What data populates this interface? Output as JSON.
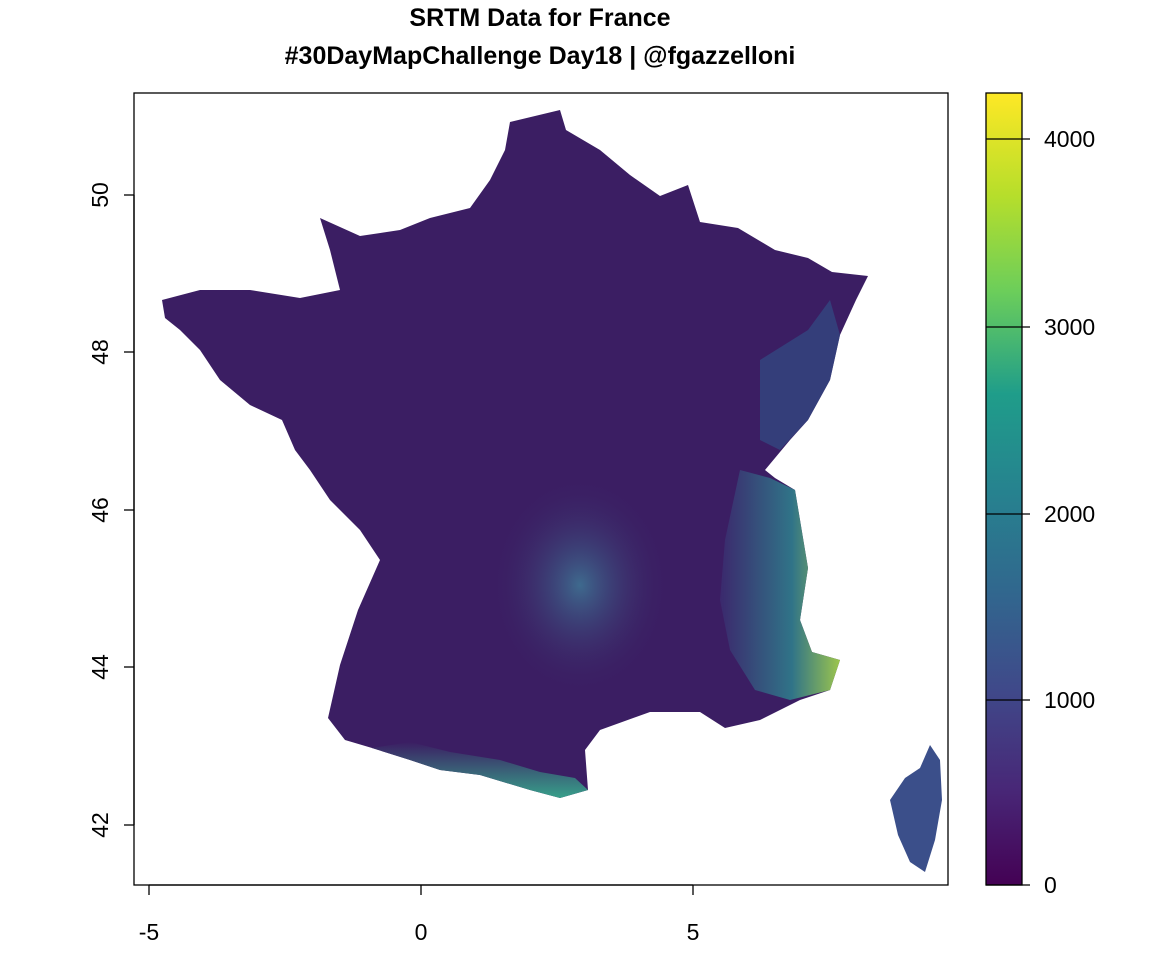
{
  "title": "SRTM Data for France",
  "subtitle": "#30DayMapChallenge Day18 | @fgazzelloni",
  "x_axis": {
    "ticks": [
      -5,
      0,
      5
    ],
    "labels": [
      "-5",
      "0",
      "5"
    ]
  },
  "y_axis": {
    "ticks": [
      42,
      44,
      46,
      48,
      50
    ],
    "labels": [
      "42",
      "44",
      "46",
      "48",
      "50"
    ]
  },
  "legend": {
    "ticks": [
      0,
      1000,
      2000,
      3000,
      4000
    ],
    "labels": [
      "0",
      "1000",
      "2000",
      "3000",
      "4000"
    ],
    "range": [
      0,
      4200
    ],
    "palette": [
      "#440154",
      "#482777",
      "#3f4a8a",
      "#31678e",
      "#26838f",
      "#1f9d8a",
      "#6cce5a",
      "#b6de2b",
      "#fee825"
    ]
  },
  "map": {
    "region": "France",
    "colors": {
      "lowland": "#3b1e63",
      "midland": "#3e4a86",
      "highland": "#2f7d8c",
      "peak": "#a7d84a"
    }
  }
}
